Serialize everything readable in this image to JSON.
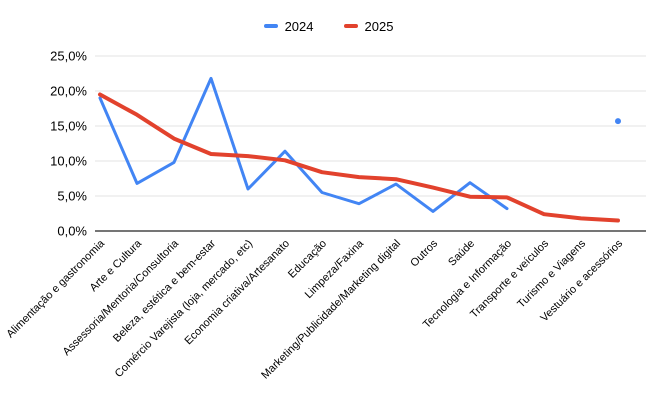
{
  "colors": {
    "series_2024": "#4285f4",
    "series_2025": "#e2422d",
    "gridline": "#e3e3e3",
    "axis_line": "#757575",
    "label_text": "#000000",
    "background": "#ffffff"
  },
  "chart_data": {
    "type": "line",
    "title": "",
    "xlabel": "",
    "ylabel": "",
    "legend_position": "top",
    "grid": true,
    "ylim": [
      0,
      25
    ],
    "yticks": [
      0,
      5,
      10,
      15,
      20,
      25
    ],
    "ytick_labels": [
      "0,0%",
      "5,0%",
      "10,0%",
      "15,0%",
      "20,0%",
      "25,0%"
    ],
    "categories": [
      "Alimentação e gastronomia",
      "Arte e Cultura",
      "Assessoria/Mentoria/Consultoria",
      "Beleza, estética e bem-estar",
      "Comércio Varejista (loja, mercado, etc)",
      "Economia criativa/Artesanato",
      "Educação",
      "Limpeza/Faxina",
      "Marketing/Publicidade/Marketing digital",
      "Outros",
      "Saúde",
      "Tecnologia e Informação",
      "Transporte e veículos",
      "Turismo e Viagens",
      "Vestuário e acessórios"
    ],
    "series": [
      {
        "name": "2024",
        "color": "#4285f4",
        "values": [
          19.0,
          6.8,
          9.8,
          21.8,
          6.0,
          11.4,
          5.5,
          3.9,
          6.7,
          2.8,
          6.9,
          3.2,
          null,
          null,
          15.7
        ]
      },
      {
        "name": "2025",
        "color": "#e2422d",
        "values": [
          19.5,
          16.6,
          13.2,
          11.0,
          10.7,
          10.1,
          8.4,
          7.7,
          7.4,
          6.2,
          4.9,
          4.8,
          2.4,
          1.8,
          1.5
        ]
      }
    ]
  }
}
